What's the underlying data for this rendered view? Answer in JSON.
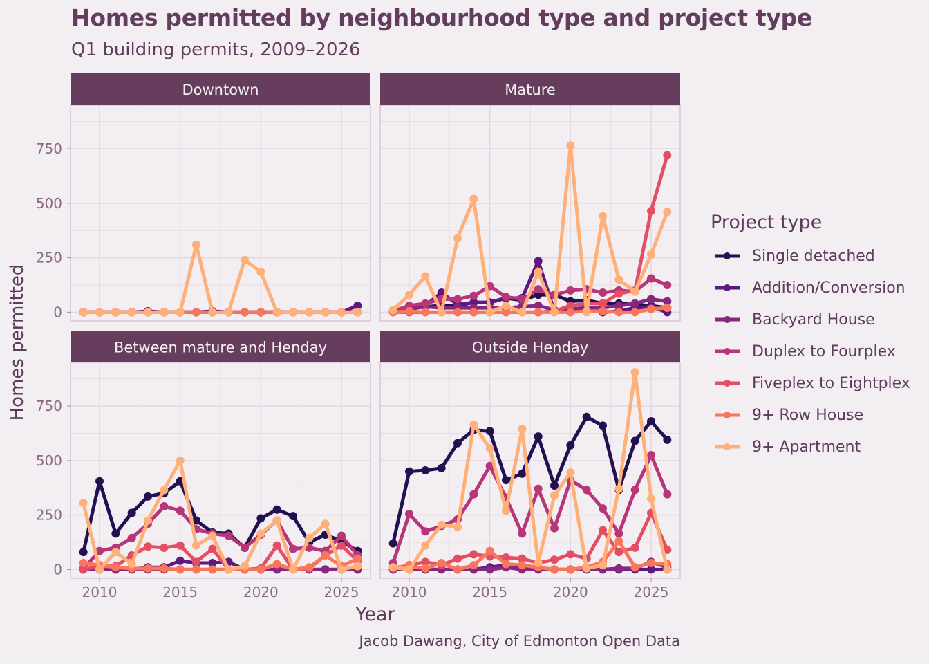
{
  "header": {
    "title": "Homes permitted by neighbourhood type and project type",
    "subtitle": "Q1 building permits, 2009–2026"
  },
  "axes": {
    "xlabel": "Year",
    "ylabel": "Homes permitted"
  },
  "caption": "Jacob Dawang, City of Edmonton Open Data",
  "legend": {
    "title": "Project type",
    "items": [
      {
        "label": "Single detached",
        "color": "#221150"
      },
      {
        "label": "Addition/Conversion",
        "color": "#5f187f"
      },
      {
        "label": "Backyard House",
        "color": "#862781"
      },
      {
        "label": "Duplex to Fourplex",
        "color": "#b63679"
      },
      {
        "label": "Fiveplex to Eightplex",
        "color": "#e34e65"
      },
      {
        "label": "9+ Row House",
        "color": "#f8765c"
      },
      {
        "label": "9+ Apartment",
        "color": "#feb078"
      }
    ]
  },
  "chart_data": {
    "type": "line",
    "title": "Homes permitted by neighbourhood type and project type",
    "subtitle": "Q1 building permits, 2009–2026",
    "xlabel": "Year",
    "ylabel": "Homes permitted",
    "x": [
      2009,
      2010,
      2011,
      2012,
      2013,
      2014,
      2015,
      2016,
      2017,
      2018,
      2019,
      2020,
      2021,
      2022,
      2023,
      2024,
      2025,
      2026
    ],
    "xlim": [
      2008.2,
      2026.8
    ],
    "ylim": [
      -40,
      950
    ],
    "xticks": [
      2010,
      2015,
      2020,
      2025
    ],
    "yticks": [
      0,
      250,
      500,
      750
    ],
    "grid": true,
    "legend_position": "right",
    "series_names": [
      "Single detached",
      "Addition/Conversion",
      "Backyard House",
      "Duplex to Fourplex",
      "Fiveplex to Eightplex",
      "9+ Row House",
      "9+ Apartment"
    ],
    "series_colors": [
      "#221150",
      "#5f187f",
      "#862781",
      "#b63679",
      "#e34e65",
      "#f8765c",
      "#feb078"
    ],
    "panels": [
      {
        "name": "Downtown",
        "series": [
          {
            "name": "Single detached",
            "values": [
              0,
              0,
              0,
              0,
              0,
              0,
              0,
              0,
              0,
              0,
              0,
              0,
              0,
              0,
              0,
              0,
              0,
              0
            ]
          },
          {
            "name": "Addition/Conversion",
            "values": [
              0,
              0,
              0,
              0,
              5,
              0,
              0,
              0,
              5,
              0,
              0,
              0,
              0,
              0,
              0,
              0,
              0,
              30
            ]
          },
          {
            "name": "Backyard House",
            "values": [
              0,
              0,
              0,
              0,
              0,
              0,
              0,
              0,
              0,
              0,
              0,
              0,
              0,
              0,
              0,
              0,
              0,
              0
            ]
          },
          {
            "name": "Duplex to Fourplex",
            "values": [
              0,
              0,
              0,
              0,
              0,
              0,
              0,
              0,
              0,
              0,
              0,
              0,
              0,
              0,
              0,
              0,
              0,
              0
            ]
          },
          {
            "name": "Fiveplex to Eightplex",
            "values": [
              0,
              0,
              0,
              0,
              0,
              0,
              0,
              0,
              0,
              0,
              0,
              0,
              0,
              0,
              0,
              0,
              0,
              0
            ]
          },
          {
            "name": "9+ Row House",
            "values": [
              0,
              0,
              0,
              0,
              0,
              0,
              0,
              0,
              0,
              0,
              0,
              0,
              0,
              0,
              0,
              0,
              0,
              0
            ]
          },
          {
            "name": "9+ Apartment",
            "values": [
              0,
              0,
              0,
              0,
              0,
              0,
              0,
              310,
              0,
              0,
              240,
              185,
              0,
              0,
              0,
              0,
              0,
              0
            ]
          }
        ]
      },
      {
        "name": "Mature",
        "series": [
          {
            "name": "Single detached",
            "values": [
              5,
              15,
              25,
              30,
              30,
              45,
              45,
              65,
              55,
              80,
              80,
              50,
              55,
              40,
              40,
              35,
              30,
              20
            ]
          },
          {
            "name": "Addition/Conversion",
            "values": [
              5,
              15,
              30,
              90,
              35,
              45,
              45,
              65,
              65,
              235,
              5,
              10,
              20,
              0,
              5,
              20,
              25,
              0
            ]
          },
          {
            "name": "Backyard House",
            "values": [
              5,
              15,
              25,
              20,
              20,
              20,
              20,
              20,
              25,
              30,
              10,
              15,
              20,
              20,
              30,
              40,
              60,
              50
            ]
          },
          {
            "name": "Duplex to Fourplex",
            "values": [
              5,
              30,
              40,
              60,
              60,
              75,
              120,
              70,
              60,
              105,
              80,
              100,
              105,
              90,
              100,
              95,
              155,
              125
            ]
          },
          {
            "name": "Fiveplex to Eightplex",
            "values": [
              0,
              0,
              0,
              0,
              0,
              0,
              0,
              0,
              0,
              0,
              5,
              30,
              40,
              40,
              85,
              100,
              465,
              720
            ]
          },
          {
            "name": "9+ Row House",
            "values": [
              0,
              5,
              0,
              0,
              0,
              0,
              0,
              0,
              0,
              0,
              0,
              0,
              5,
              5,
              0,
              0,
              15,
              20
            ]
          },
          {
            "name": "9+ Apartment",
            "values": [
              10,
              80,
              165,
              0,
              340,
              520,
              0,
              30,
              0,
              185,
              0,
              765,
              0,
              440,
              150,
              95,
              265,
              460
            ]
          }
        ]
      },
      {
        "name": "Between mature and Henday",
        "series": [
          {
            "name": "Single detached",
            "values": [
              80,
              405,
              165,
              260,
              335,
              350,
              405,
              225,
              170,
              165,
              100,
              235,
              275,
              245,
              125,
              160,
              130,
              85
            ]
          },
          {
            "name": "Addition/Conversion",
            "values": [
              0,
              0,
              0,
              0,
              10,
              10,
              40,
              30,
              30,
              35,
              0,
              0,
              0,
              0,
              0,
              0,
              0,
              0
            ]
          },
          {
            "name": "Backyard House",
            "values": [
              0,
              0,
              0,
              0,
              0,
              0,
              0,
              0,
              0,
              0,
              0,
              0,
              0,
              0,
              0,
              0,
              0,
              0
            ]
          },
          {
            "name": "Duplex to Fourplex",
            "values": [
              5,
              85,
              100,
              145,
              210,
              290,
              270,
              185,
              165,
              155,
              100,
              160,
              225,
              95,
              100,
              85,
              155,
              65
            ]
          },
          {
            "name": "Fiveplex to Eightplex",
            "values": [
              0,
              15,
              15,
              65,
              105,
              100,
              110,
              35,
              95,
              0,
              0,
              5,
              110,
              0,
              5,
              65,
              110,
              40
            ]
          },
          {
            "name": "9+ Row House",
            "values": [
              30,
              20,
              10,
              5,
              5,
              5,
              0,
              0,
              0,
              0,
              0,
              0,
              25,
              0,
              10,
              65,
              15,
              50
            ]
          },
          {
            "name": "9+ Apartment",
            "values": [
              305,
              0,
              80,
              25,
              225,
              365,
              500,
              110,
              155,
              0,
              15,
              165,
              225,
              0,
              145,
              210,
              0,
              15
            ]
          }
        ]
      },
      {
        "name": "Outside Henday",
        "series": [
          {
            "name": "Single detached",
            "values": [
              120,
              450,
              455,
              465,
              580,
              640,
              635,
              410,
              440,
              610,
              385,
              570,
              700,
              660,
              365,
              590,
              680,
              595
            ]
          },
          {
            "name": "Addition/Conversion",
            "values": [
              0,
              0,
              0,
              0,
              0,
              0,
              10,
              20,
              5,
              0,
              0,
              0,
              0,
              0,
              0,
              0,
              0,
              0
            ]
          },
          {
            "name": "Backyard House",
            "values": [
              0,
              0,
              0,
              0,
              0,
              0,
              0,
              10,
              0,
              0,
              0,
              0,
              5,
              0,
              5,
              5,
              35,
              10
            ]
          },
          {
            "name": "Duplex to Fourplex",
            "values": [
              30,
              255,
              175,
              200,
              230,
              345,
              475,
              330,
              165,
              370,
              190,
              410,
              365,
              280,
              165,
              365,
              525,
              345
            ]
          },
          {
            "name": "Fiveplex to Eightplex",
            "values": [
              5,
              20,
              35,
              20,
              50,
              70,
              60,
              55,
              50,
              30,
              45,
              70,
              50,
              180,
              80,
              100,
              260,
              90
            ]
          },
          {
            "name": "9+ Row House",
            "values": [
              10,
              15,
              5,
              30,
              0,
              20,
              85,
              25,
              20,
              10,
              0,
              0,
              10,
              35,
              130,
              10,
              30,
              25
            ]
          },
          {
            "name": "9+ Apartment",
            "values": [
              10,
              0,
              110,
              205,
              195,
              665,
              555,
              270,
              645,
              30,
              340,
              445,
              5,
              20,
              370,
              905,
              325,
              0
            ]
          }
        ]
      }
    ]
  }
}
